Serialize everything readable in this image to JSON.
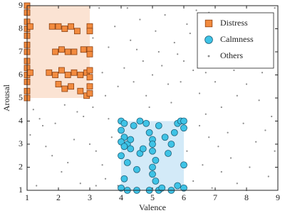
{
  "chart_data": {
    "type": "scatter",
    "xlabel": "Valence",
    "ylabel": "Arousal",
    "xlim": [
      1,
      9
    ],
    "ylim": [
      1,
      9
    ],
    "xticks": [
      1,
      2,
      3,
      4,
      5,
      6,
      7,
      8,
      9
    ],
    "yticks": [
      1,
      2,
      3,
      4,
      5,
      6,
      7,
      8,
      9
    ],
    "legend": "upper right",
    "series": [
      {
        "name": "Distress",
        "color": "#f28b3f",
        "edge": "#8a3f10",
        "marker": "square",
        "region": {
          "x": [
            1,
            3
          ],
          "y": [
            5,
            9
          ],
          "color": "#fbe3d3"
        },
        "x": [
          1,
          1,
          1,
          1,
          1,
          1,
          1,
          1,
          1,
          1,
          1,
          1,
          1,
          1.1,
          1.1,
          1.8,
          2,
          2.2,
          2.4,
          2.6,
          1.9,
          2.1,
          2.3,
          2.5,
          2.8,
          1.7,
          1.9,
          2.1,
          2.3,
          2.5,
          2.7,
          2.9,
          2,
          2.4,
          2.7,
          2.9,
          3,
          3,
          3,
          3,
          3,
          3,
          3,
          3,
          2.2
        ],
        "y": [
          9,
          8.7,
          8.3,
          8,
          7.7,
          7.3,
          7,
          6.6,
          6.3,
          6,
          5.7,
          5.3,
          5,
          8.1,
          6.1,
          8.1,
          8.1,
          8,
          8.1,
          7.9,
          7,
          7.1,
          7,
          7,
          7.1,
          6.1,
          6,
          6.2,
          6,
          6.1,
          6,
          6.1,
          5.6,
          5.5,
          5.3,
          5.1,
          8.1,
          7.9,
          7.1,
          6.9,
          6.2,
          5.9,
          5.5,
          5.2,
          5.4
        ]
      },
      {
        "name": "Calmness",
        "color": "#3ec3e6",
        "edge": "#1d5f78",
        "marker": "circle",
        "region": {
          "x": [
            4,
            6
          ],
          "y": [
            1,
            4
          ],
          "color": "#d3eaf8"
        },
        "x": [
          4,
          4.1,
          4,
          4.1,
          4,
          4.2,
          4.1,
          4.3,
          4,
          4.2,
          4.1,
          4,
          4.2,
          4.5,
          4.4,
          4.3,
          4.6,
          4.5,
          4.7,
          4.8,
          4.9,
          5,
          5,
          5,
          5.1,
          5,
          5,
          5.1,
          4.9,
          5.2,
          5.3,
          5.2,
          5.4,
          5.6,
          5.5,
          5.7,
          5.8,
          5.9,
          6,
          6,
          5.6,
          5.8,
          6,
          6,
          4.6
        ],
        "y": [
          4,
          3.9,
          3.6,
          3.3,
          3.1,
          3,
          2.9,
          2.8,
          2.5,
          2.2,
          1.5,
          1.1,
          1,
          1,
          3.8,
          3.2,
          2.6,
          1.9,
          2.8,
          3.9,
          3.5,
          3.2,
          3,
          2.7,
          2.3,
          2,
          1.7,
          1.4,
          1,
          1,
          1.1,
          3.8,
          3.3,
          3,
          2.6,
          3.5,
          3.9,
          4,
          4,
          3.7,
          1,
          1.2,
          2.1,
          1.1,
          4
        ]
      },
      {
        "name": "Others",
        "color": "#8c8c8c",
        "marker": "dot",
        "x": [
          1.2,
          1.5,
          1.8,
          2.1,
          2.5,
          2.8,
          3.2,
          3.5,
          1.3,
          1.9,
          2.3,
          3.1,
          3.4,
          3.6,
          3.8,
          3.3,
          3.9,
          4.1,
          4.3,
          4.6,
          4.8,
          5,
          5.2,
          5.4,
          5.6,
          5.9,
          6,
          6.2,
          6.4,
          6.5,
          6.7,
          6.9,
          7,
          7.2,
          7.4,
          7.5,
          7.7,
          7.9,
          8,
          8.2,
          8.4,
          8.6,
          8.8,
          8.9,
          8.7,
          8.3,
          8.1,
          7.6,
          7.3,
          6.8,
          6.6,
          6.3,
          6.5,
          6.9,
          7.1,
          3.7,
          3.4,
          3.9,
          2.7,
          1.6,
          1.1,
          2.2,
          3.6,
          4.4,
          4.7,
          5.1,
          5.5,
          5.8,
          6.1,
          6.8,
          7.8,
          8.5,
          8.9,
          8.8,
          7.7,
          4.2,
          4.9,
          5.7,
          6.3,
          7,
          2.6,
          1.4,
          3,
          3.2,
          6.7,
          8,
          8.6,
          7.4,
          5.3,
          4.5,
          3.5,
          3.1,
          6.1,
          7.2,
          8.4
        ],
        "y": [
          4.5,
          3.8,
          2.5,
          1.8,
          3.2,
          4.2,
          2.7,
          1.5,
          1.2,
          3.9,
          2.2,
          4.6,
          6.1,
          7.2,
          8.1,
          8.9,
          5.5,
          6.3,
          7.5,
          8.4,
          5.1,
          6,
          7,
          8.6,
          4.8,
          5.7,
          6.6,
          7.8,
          8.8,
          5.2,
          6.1,
          7.1,
          8,
          4.6,
          3.5,
          2.4,
          1.3,
          3.9,
          5.6,
          6.8,
          7.6,
          8.5,
          4.2,
          2.7,
          1.6,
          3.1,
          2,
          6.2,
          7.4,
          3.3,
          2.1,
          1.4,
          3.8,
          1.1,
          2.9,
          3.3,
          2.1,
          1.2,
          1.3,
          2.9,
          3.4,
          4.7,
          4.1,
          5.7,
          6.6,
          7.9,
          5.6,
          6.9,
          8.2,
          8.7,
          7.1,
          6.1,
          8.9,
          7,
          5.1,
          8.9,
          4.6,
          7.4,
          6.2,
          5.7,
          4.4,
          4.1,
          3,
          1.2,
          4.3,
          1,
          3.6,
          8.3,
          6.4,
          7.1,
          5.1,
          7.6,
          2.7,
          1.8,
          4.9
        ]
      }
    ]
  }
}
